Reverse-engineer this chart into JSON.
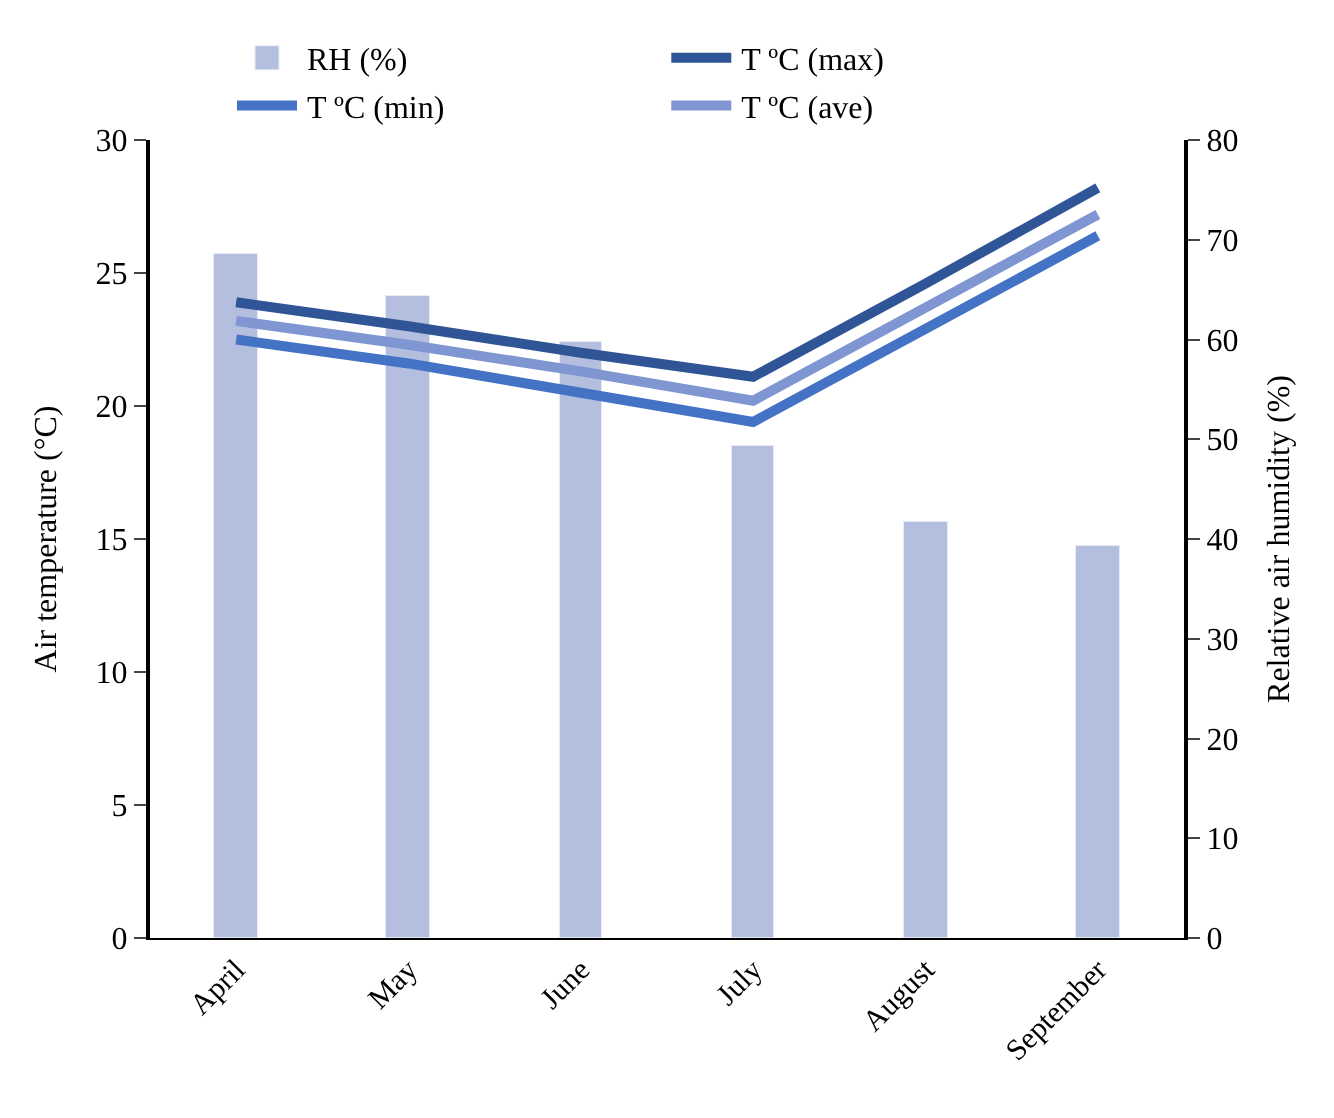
{
  "chart_data": {
    "type": "bar",
    "categories": [
      "April",
      "May",
      "June",
      "July",
      "August",
      "September"
    ],
    "ylabel": "Air temperature (°C)",
    "y2label": "Relative air humidity (%)",
    "ylim": [
      0,
      30
    ],
    "yticks": [
      0,
      5,
      10,
      15,
      20,
      25,
      30
    ],
    "y2lim": [
      0,
      80
    ],
    "y2ticks": [
      0,
      10,
      20,
      30,
      40,
      50,
      60,
      70,
      80
    ],
    "legend": "top",
    "grid": false,
    "marker": "none",
    "line_style": "solid",
    "series": [
      {
        "name": "RH (%)",
        "axis": "y2",
        "color": "#b4bfdf",
        "values": [
          68.5,
          64.3,
          59.7,
          49.3,
          41.8,
          39.2
        ]
      },
      {
        "name": "T ºC (max)",
        "type": "line",
        "color": "#2f5597",
        "values": [
          23.9,
          23.0,
          22.0,
          21.1,
          24.6,
          28.2
        ]
      },
      {
        "name": "T ºC (min)",
        "type": "line",
        "color": "#4472c4",
        "values": [
          22.5,
          21.6,
          20.5,
          19.4,
          22.9,
          26.4
        ]
      },
      {
        "name": "T ºC (ave)",
        "type": "line",
        "color": "#7f96d2",
        "values": [
          23.2,
          22.3,
          21.3,
          20.2,
          23.7,
          27.2
        ]
      }
    ]
  }
}
